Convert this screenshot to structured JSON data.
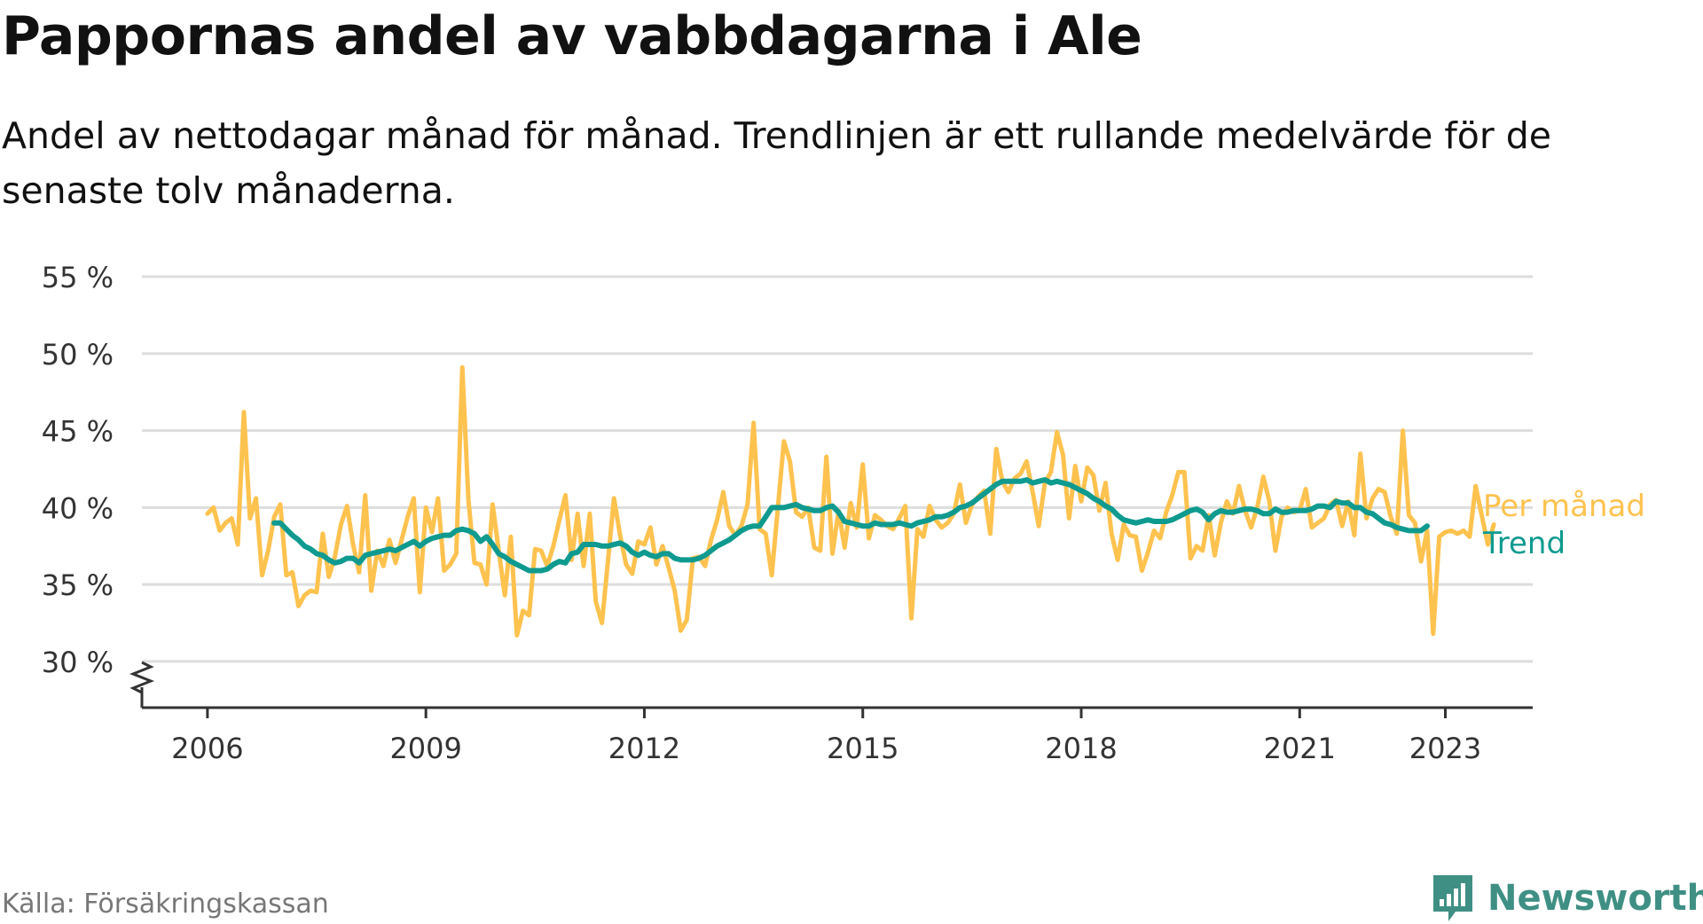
{
  "title": "Pappornas andel av vabbdagarna i Ale",
  "subtitle": "Andel av nettodagar månad för månad. Trendlinjen är ett rullande medelvärde för de senaste tolv månaderna.",
  "source": "Källa: Försäkringskassan",
  "brand": "Newsworthy",
  "chart_data": {
    "type": "line",
    "title": "Pappornas andel av vabbdagarna i Ale",
    "x_unit": "year (decimal, monthly steps)",
    "xlim": [
      2005.1,
      2024.2
    ],
    "ylim": [
      27,
      55
    ],
    "y_ticks": [
      30,
      35,
      40,
      45,
      50,
      55
    ],
    "y_tick_labels": [
      "30 %",
      "35 %",
      "40 %",
      "45 %",
      "50 %",
      "55 %"
    ],
    "x_ticks": [
      2006,
      2009,
      2012,
      2015,
      2018,
      2021,
      2023
    ],
    "x_tick_labels": [
      "2006",
      "2009",
      "2012",
      "2015",
      "2018",
      "2021",
      "2023"
    ],
    "y_axis_break": true,
    "grid": "horizontal",
    "legend": "direct labels at line ends",
    "colors": {
      "monthly": "#fec24f",
      "trend": "#0f9a8f",
      "grid": "#dddddd",
      "axis": "#333333"
    },
    "series": [
      {
        "name": "Per månad",
        "start": 2006.0,
        "step": 0.0833333,
        "values": [
          39.6,
          40.0,
          38.5,
          39.0,
          39.3,
          37.6,
          46.2,
          39.3,
          40.6,
          35.6,
          37.2,
          39.4,
          40.2,
          35.6,
          35.8,
          33.6,
          34.3,
          34.6,
          34.5,
          38.3,
          35.5,
          36.8,
          38.9,
          40.1,
          37.6,
          35.8,
          40.8,
          34.6,
          37.2,
          36.2,
          37.9,
          36.4,
          37.9,
          39.4,
          40.6,
          34.5,
          40.0,
          38.4,
          40.6,
          35.9,
          36.3,
          37.0,
          49.1,
          40.5,
          36.4,
          36.3,
          35.0,
          40.2,
          37.2,
          34.3,
          38.1,
          31.7,
          33.3,
          33.0,
          37.3,
          37.2,
          36.2,
          37.5,
          39.2,
          40.8,
          36.6,
          39.6,
          36.2,
          39.6,
          33.9,
          32.5,
          36.5,
          40.6,
          38.2,
          36.3,
          35.7,
          37.8,
          37.6,
          38.7,
          36.3,
          37.5,
          36.1,
          34.6,
          32.0,
          32.7,
          36.7,
          36.8,
          36.2,
          37.9,
          39.2,
          41.0,
          38.8,
          38.2,
          38.8,
          40.2,
          45.5,
          38.6,
          38.3,
          35.6,
          40.0,
          44.3,
          43.0,
          39.7,
          39.4,
          40.0,
          37.4,
          37.2,
          43.3,
          37.0,
          39.8,
          37.4,
          40.3,
          38.7,
          42.8,
          38.0,
          39.5,
          39.2,
          38.8,
          38.6,
          39.3,
          40.1,
          32.8,
          38.6,
          38.1,
          40.1,
          39.2,
          38.7,
          39.0,
          39.6,
          41.5,
          39.0,
          40.2,
          40.7,
          41.1,
          38.3,
          43.8,
          41.7,
          41.0,
          41.9,
          42.2,
          43.0,
          41.0,
          38.8,
          41.6,
          42.3,
          44.9,
          43.4,
          39.3,
          42.7,
          40.4,
          42.6,
          42.1,
          39.8,
          41.6,
          38.3,
          36.6,
          38.9,
          38.2,
          38.1,
          35.9,
          37.1,
          38.5,
          38.0,
          39.7,
          40.8,
          42.3,
          42.3,
          36.7,
          37.5,
          37.2,
          39.5,
          36.9,
          39.0,
          40.4,
          39.6,
          41.4,
          39.8,
          38.7,
          40.0,
          42.0,
          40.4,
          37.2,
          39.4,
          40.0,
          39.7,
          39.8,
          41.2,
          38.7,
          39.0,
          39.3,
          40.2,
          40.5,
          38.8,
          40.4,
          38.2,
          43.5,
          39.3,
          40.6,
          41.2,
          41.0,
          39.4,
          38.3,
          45.0,
          39.5,
          39.0,
          36.5,
          38.5,
          31.8,
          38.1,
          38.4,
          38.5,
          38.3,
          38.5,
          38.1,
          41.4,
          39.5,
          37.6,
          38.9
        ]
      },
      {
        "name": "Trend",
        "start": 2006.9167,
        "step": 0.0833333,
        "values": [
          39.0,
          39.0,
          38.6,
          38.2,
          37.9,
          37.5,
          37.3,
          37.0,
          36.9,
          36.6,
          36.4,
          36.5,
          36.7,
          36.7,
          36.4,
          36.9,
          37.0,
          37.1,
          37.2,
          37.3,
          37.2,
          37.4,
          37.6,
          37.8,
          37.5,
          37.8,
          38.0,
          38.1,
          38.2,
          38.2,
          38.5,
          38.6,
          38.5,
          38.3,
          37.8,
          38.1,
          37.6,
          37.0,
          36.8,
          36.5,
          36.3,
          36.1,
          35.9,
          35.9,
          35.9,
          36.0,
          36.3,
          36.5,
          36.4,
          37.0,
          37.1,
          37.6,
          37.6,
          37.6,
          37.5,
          37.5,
          37.6,
          37.7,
          37.5,
          37.1,
          36.9,
          37.1,
          36.9,
          36.8,
          37.0,
          37.0,
          36.7,
          36.6,
          36.6,
          36.6,
          36.7,
          36.9,
          37.2,
          37.5,
          37.7,
          37.9,
          38.2,
          38.5,
          38.7,
          38.8,
          38.8,
          39.4,
          40.0,
          40.0,
          40.0,
          40.1,
          40.2,
          40.0,
          39.9,
          39.8,
          39.8,
          40.0,
          40.1,
          39.7,
          39.1,
          39.0,
          38.9,
          38.8,
          38.8,
          39.0,
          38.9,
          38.9,
          38.9,
          39.0,
          38.9,
          38.8,
          39.0,
          39.1,
          39.2,
          39.4,
          39.4,
          39.5,
          39.7,
          40.0,
          40.1,
          40.3,
          40.6,
          40.9,
          41.2,
          41.5,
          41.7,
          41.7,
          41.7,
          41.7,
          41.8,
          41.6,
          41.7,
          41.8,
          41.6,
          41.7,
          41.6,
          41.5,
          41.3,
          41.1,
          40.9,
          40.6,
          40.4,
          40.1,
          39.9,
          39.5,
          39.2,
          39.1,
          39.0,
          39.1,
          39.2,
          39.1,
          39.1,
          39.1,
          39.2,
          39.4,
          39.6,
          39.8,
          39.9,
          39.7,
          39.2,
          39.6,
          39.8,
          39.7,
          39.7,
          39.8,
          39.9,
          39.9,
          39.8,
          39.6,
          39.6,
          39.9,
          39.7,
          39.7,
          39.8,
          39.8,
          39.8,
          39.9,
          40.1,
          40.1,
          40.0,
          40.4,
          40.3,
          40.3,
          40.0,
          40.0,
          39.7,
          39.6,
          39.3,
          39.0,
          38.9,
          38.7,
          38.6,
          38.5,
          38.5,
          38.5,
          38.8
        ]
      }
    ]
  }
}
